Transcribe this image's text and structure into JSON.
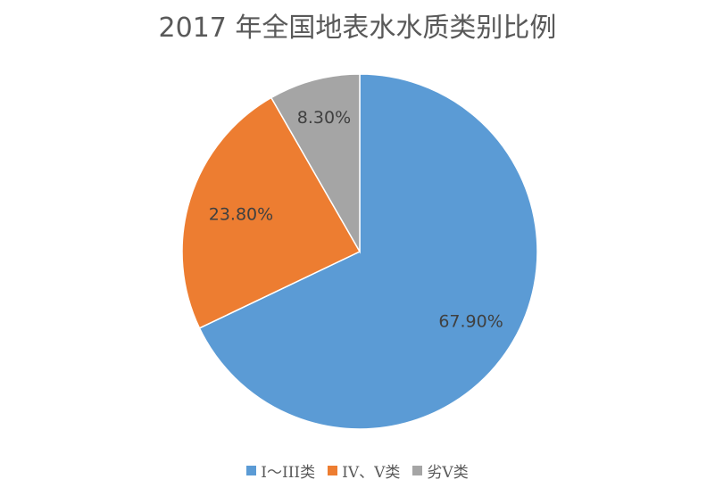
{
  "chart_data": {
    "type": "pie",
    "title": "2017 年全国地表水水质类别比例",
    "slices": [
      {
        "name": "I～III类",
        "value": 67.9,
        "label": "67.90%",
        "color": "#5B9BD5"
      },
      {
        "name": "IV、V类",
        "value": 23.8,
        "label": "23.80%",
        "color": "#ED7D31"
      },
      {
        "name": "劣V类",
        "value": 8.3,
        "label": "8.30%",
        "color": "#A5A5A5"
      }
    ],
    "legend_position": "bottom"
  }
}
